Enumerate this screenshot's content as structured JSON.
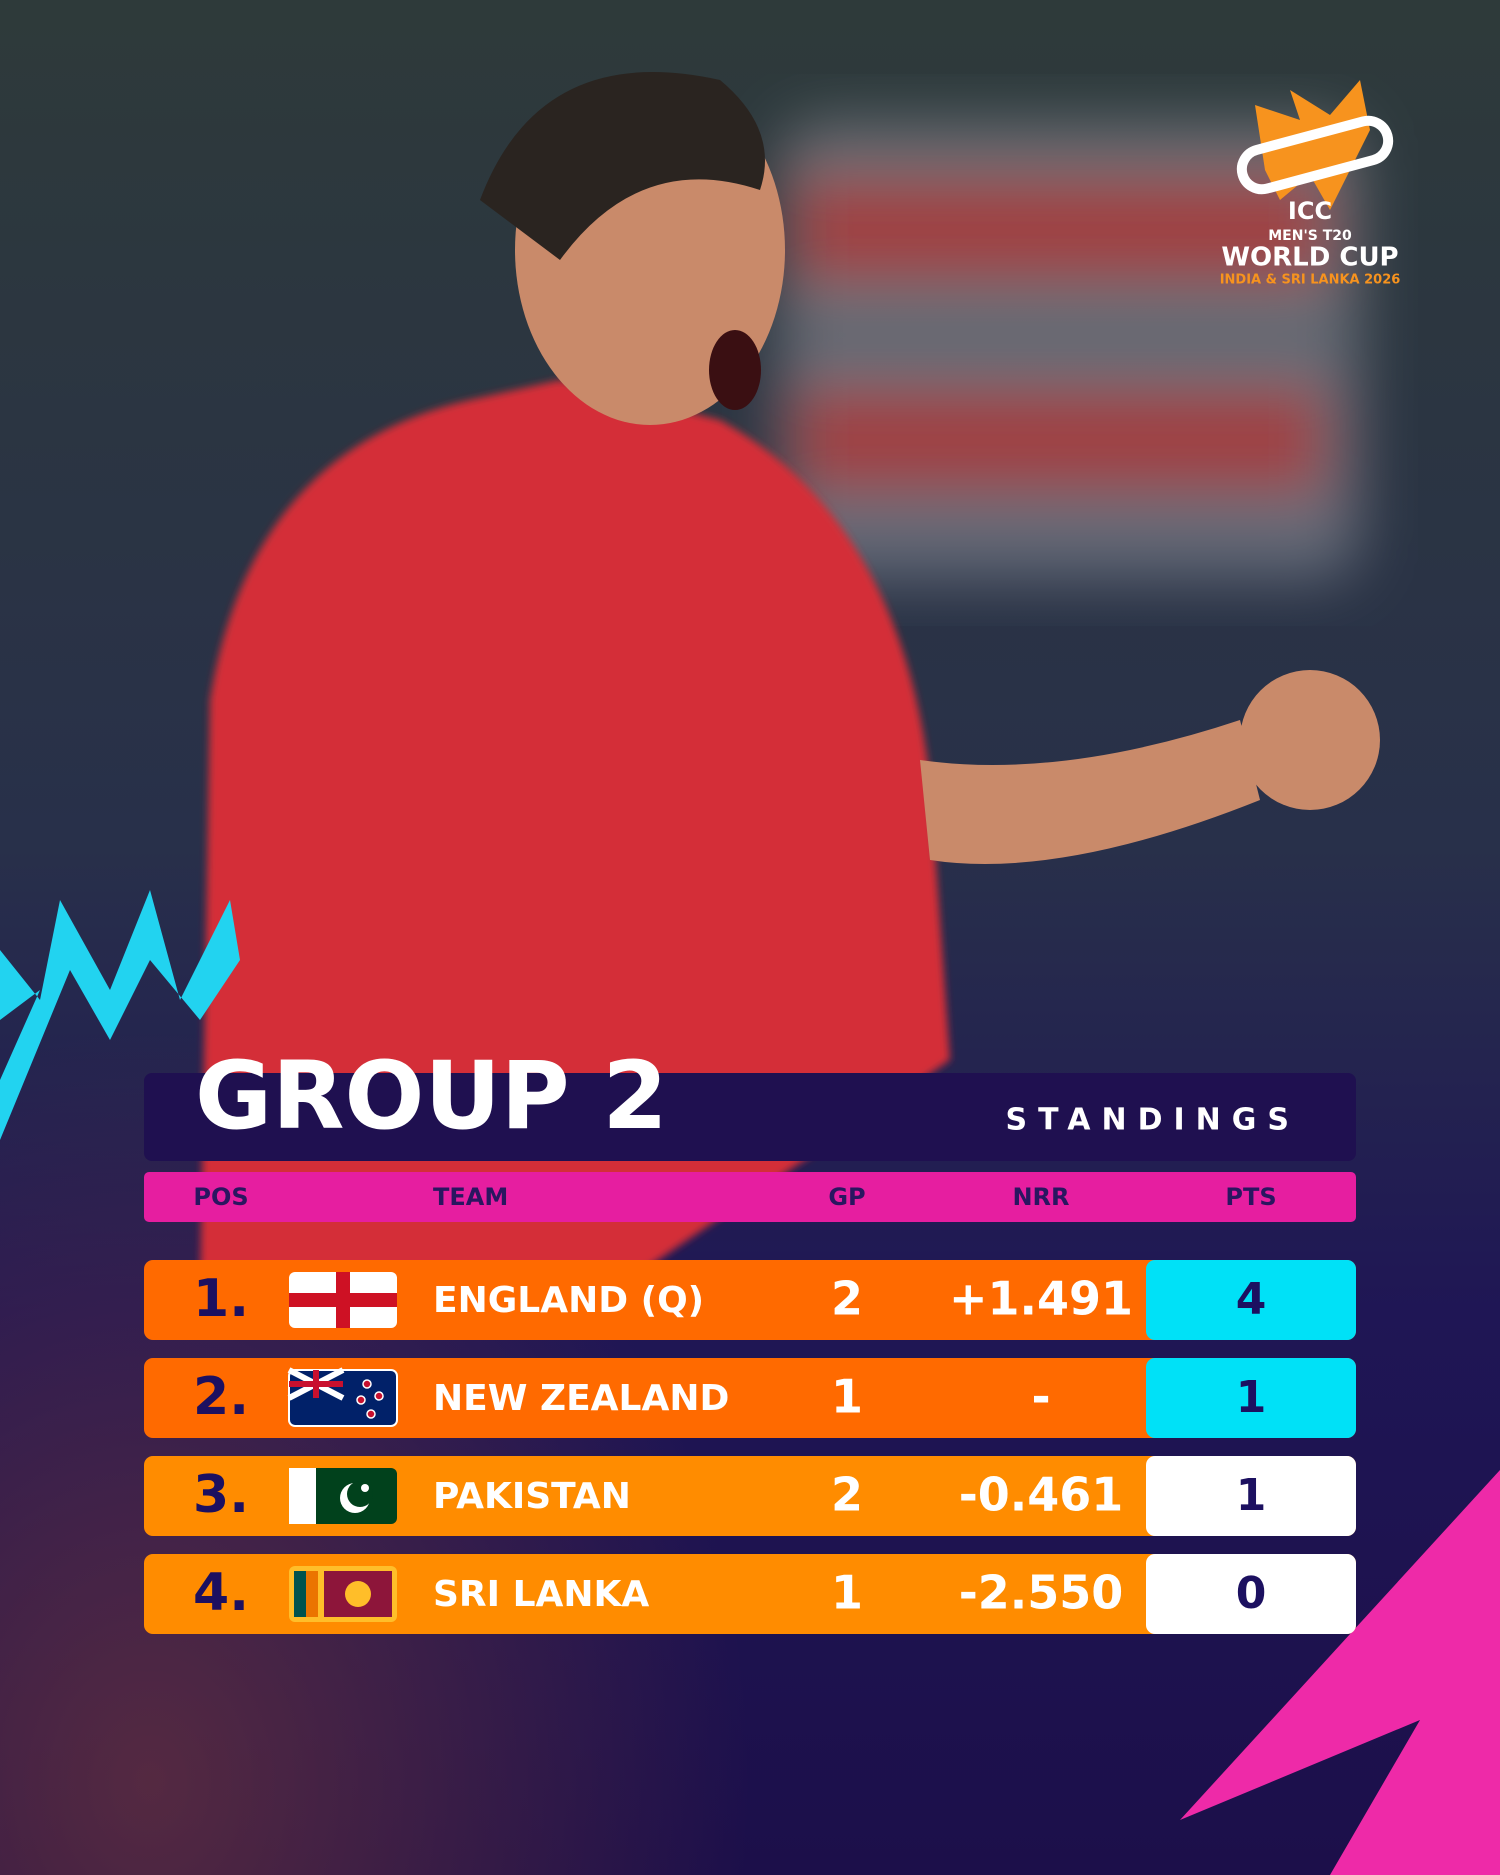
{
  "logo": {
    "org": "ICC",
    "event_line1": "MEN'S T20",
    "event_line2": "WORLD CUP",
    "host": "INDIA & SRI LANKA 2026"
  },
  "header": {
    "title": "GROUP 2",
    "subtitle": "STANDINGS"
  },
  "table": {
    "columns": [
      "POS",
      "TEAM",
      "GP",
      "NRR",
      "PTS"
    ],
    "rows": [
      [
        "1.",
        "ENGLAND (Q)",
        2,
        "+1.491",
        4
      ],
      [
        "2.",
        "NEW ZEALAND",
        1,
        "-",
        1
      ],
      [
        "3.",
        "PAKISTAN",
        2,
        "-0.461",
        1
      ],
      [
        "4.",
        "SRI LANKA",
        1,
        "-2.550",
        0
      ]
    ]
  }
}
